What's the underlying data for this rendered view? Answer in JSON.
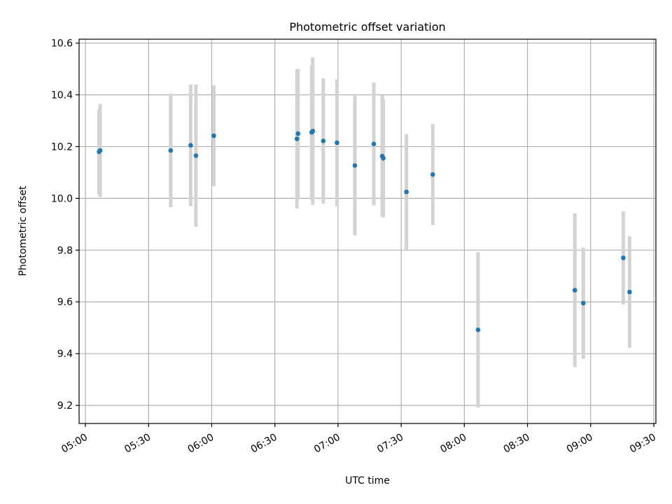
{
  "chart_data": {
    "type": "scatter",
    "title": "Photometric offset variation",
    "xlabel": "UTC time",
    "ylabel": "Photometric offset",
    "x_axis": "time",
    "xlim": [
      "04:57",
      "09:31"
    ],
    "ylim": [
      9.13,
      10.615
    ],
    "x_ticks": [
      "05:00",
      "05:30",
      "06:00",
      "06:30",
      "07:00",
      "07:30",
      "08:00",
      "08:30",
      "09:00",
      "09:30"
    ],
    "y_ticks": [
      "9.2",
      "9.4",
      "9.6",
      "9.8",
      "10.0",
      "10.2",
      "10.4",
      "10.6"
    ],
    "grid": true,
    "legend": "none",
    "colors": {
      "point": "#1f77b4",
      "errorbar": "#d3d3d3",
      "grid": "#b0b0b0"
    },
    "series": [
      {
        "points": [
          {
            "time": "05:06:30",
            "y": 10.18,
            "err": 0.165
          },
          {
            "time": "05:07:00",
            "y": 10.185,
            "err": 0.18
          },
          {
            "time": "05:40:30",
            "y": 10.185,
            "err": 0.22
          },
          {
            "time": "05:50:00",
            "y": 10.205,
            "err": 0.235
          },
          {
            "time": "05:52:30",
            "y": 10.165,
            "err": 0.275
          },
          {
            "time": "06:01:00",
            "y": 10.242,
            "err": 0.195
          },
          {
            "time": "06:40:30",
            "y": 10.23,
            "err": 0.27
          },
          {
            "time": "06:41:00",
            "y": 10.25,
            "err": 0.25
          },
          {
            "time": "06:47:30",
            "y": 10.255,
            "err": 0.26
          },
          {
            "time": "06:48:00",
            "y": 10.26,
            "err": 0.285
          },
          {
            "time": "06:53:00",
            "y": 10.222,
            "err": 0.242
          },
          {
            "time": "06:59:30",
            "y": 10.215,
            "err": 0.245
          },
          {
            "time": "07:08:00",
            "y": 10.127,
            "err": 0.27
          },
          {
            "time": "07:17:00",
            "y": 10.21,
            "err": 0.237
          },
          {
            "time": "07:21:00",
            "y": 10.163,
            "err": 0.235
          },
          {
            "time": "07:21:30",
            "y": 10.155,
            "err": 0.228
          },
          {
            "time": "07:32:30",
            "y": 10.025,
            "err": 0.223
          },
          {
            "time": "07:45:00",
            "y": 10.092,
            "err": 0.195
          },
          {
            "time": "08:06:30",
            "y": 9.492,
            "err": 0.3
          },
          {
            "time": "08:52:30",
            "y": 9.645,
            "err": 0.297
          },
          {
            "time": "08:56:30",
            "y": 9.595,
            "err": 0.215
          },
          {
            "time": "09:15:30",
            "y": 9.77,
            "err": 0.18
          },
          {
            "time": "09:18:30",
            "y": 9.638,
            "err": 0.215
          }
        ]
      }
    ]
  }
}
